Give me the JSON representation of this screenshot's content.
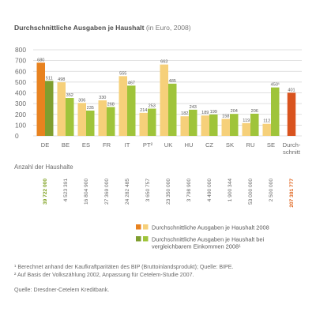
{
  "title": {
    "main": "Durchschnittliche Ausgaben je Haushalt",
    "unit": "(in Euro, 2008)"
  },
  "chart_data": {
    "type": "bar",
    "title": "Durchschnittliche Ausgaben je Haushalt (in Euro, 2008)",
    "ylim": [
      0,
      800
    ],
    "yticks": [
      0,
      100,
      200,
      300,
      400,
      500,
      600,
      700,
      800
    ],
    "grid": true,
    "categories": [
      "DE",
      "BE",
      "ES",
      "FR",
      "IT",
      "PT²",
      "UK",
      "HU",
      "CZ",
      "SK",
      "RU",
      "SE",
      "Durch-|schnitt"
    ],
    "series": [
      {
        "name": "Durchschnittliche Ausgaben je Haushalt 2008",
        "values": [
          680,
          498,
          306,
          330,
          555,
          214,
          663,
          182,
          189,
          158,
          119,
          112,
          401
        ],
        "labels": [
          "680",
          "498",
          "306",
          "330",
          "555",
          "214",
          "663",
          "182",
          "189",
          "158",
          "119",
          "112",
          "401"
        ]
      },
      {
        "name": "Durchschnittliche Ausgaben je Haushalt bei vergleichbarem Einkommen 2008¹",
        "values": [
          511,
          352,
          235,
          268,
          467,
          253,
          485,
          243,
          199,
          204,
          206,
          450,
          null
        ],
        "labels": [
          "511",
          "352",
          "235",
          "268",
          "467",
          "253",
          "485",
          "243",
          "199",
          "204",
          "206",
          "450¹",
          ""
        ]
      }
    ],
    "households": {
      "label": "Anzahl der Haushalte",
      "values": [
        "39 722 000",
        "4 523 391",
        "16 804 900",
        "27 369 000",
        "24 282 485",
        "3 650 757",
        "23 350 000",
        "3 798 900",
        "4 490 000",
        "1 900 344",
        "53 000 000",
        "2 500 000",
        "207 391 777"
      ]
    },
    "legend": [
      {
        "text": "Durchschnittliche Ausgaben je Haushalt 2008"
      },
      {
        "text": "Durchschnittliche Ausgaben je Haushalt bei vergleichbarem Einkommen 2008¹"
      }
    ]
  },
  "colors": {
    "yellow": "#f6d07a",
    "green": "#9fc43a",
    "de_first": "#e8821f",
    "de_second": "#7f9e2f",
    "avg": "#d9531e",
    "grid": "#d6d6d6",
    "text": "#5a5a5a",
    "axis_text": "#6b6b6b",
    "green_text": "#7ea11f",
    "orange_text": "#e0661f"
  },
  "footnotes": {
    "f1": "¹ Berechnet anhand der Kaufkraftparitäten des BIP (Bruttoinlandsprodukt); Quelle: BIPE.",
    "f2": "² Auf Basis der Volkszählung 2002, Anpassung für Cetelem-Studie 2007.",
    "source": "Quelle: Dresdner-Cetelem Kreditbank."
  }
}
